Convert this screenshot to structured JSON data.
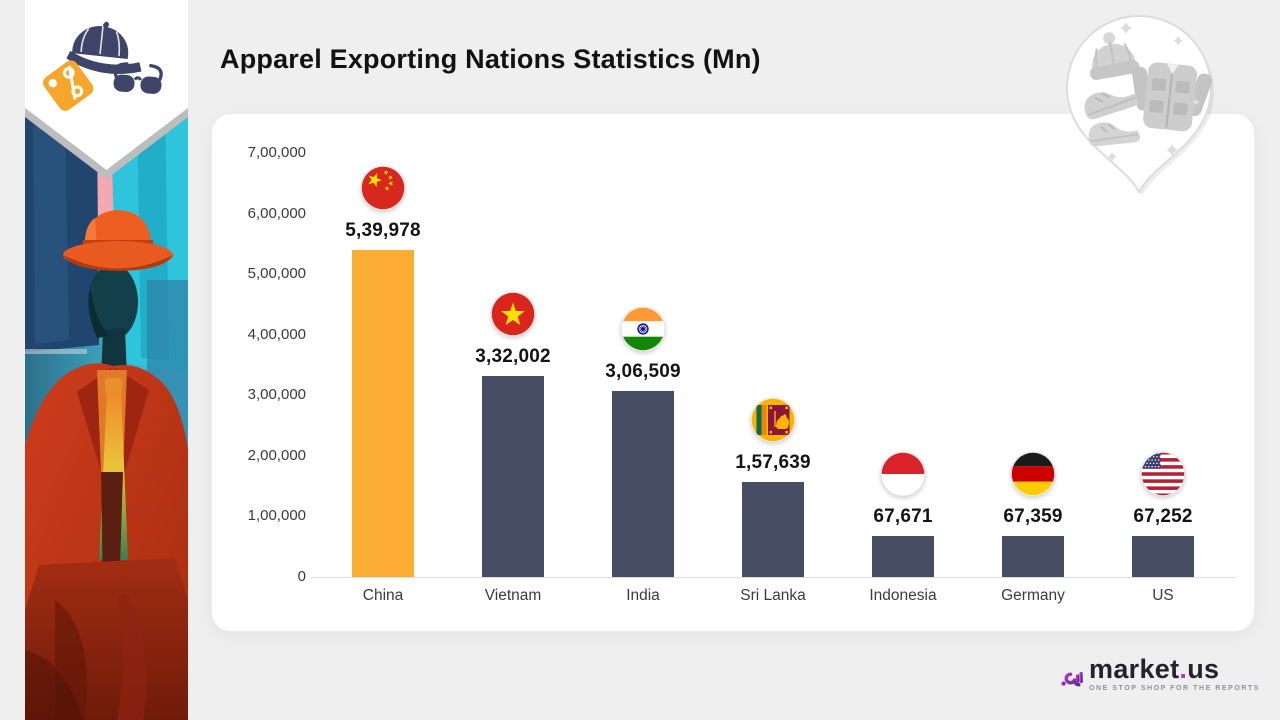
{
  "page": {
    "background": "#EFEFEF"
  },
  "header": {
    "title": "Apparel Exporting Nations Statistics (Mn)"
  },
  "chart_data": {
    "type": "bar",
    "title": "Apparel Exporting Nations Statistics (Mn)",
    "categories": [
      "China",
      "Vietnam",
      "India",
      "Sri Lanka",
      "Indonesia",
      "Germany",
      "US"
    ],
    "values": [
      539978,
      332002,
      306509,
      157639,
      67671,
      67359,
      67252
    ],
    "value_labels": [
      "5,39,978",
      "3,32,002",
      "3,06,509",
      "1,57,639",
      "67,671",
      "67,359",
      "67,252"
    ],
    "flags": [
      "china",
      "vietnam",
      "india",
      "sri-lanka",
      "indonesia",
      "germany",
      "us"
    ],
    "bar_colors": [
      "#FBAE33",
      "#474D63",
      "#474D63",
      "#474D63",
      "#474D63",
      "#474D63",
      "#474D63"
    ],
    "highlight_color": "#FBAE33",
    "default_bar_color": "#474D63",
    "xlabel": "",
    "ylabel": "",
    "ylim": [
      0,
      700000
    ],
    "yticks": [
      "7,00,000",
      "6,00,000",
      "5,00,000",
      "4,00,000",
      "3,00,000",
      "2,00,000",
      "1,00,000",
      "0"
    ],
    "grid": false,
    "legend": false
  },
  "branding": {
    "logo_market": "market",
    "logo_dot": ".",
    "logo_us": "us",
    "tagline": "ONE STOP SHOP FOR THE REPORTS",
    "accent_purple": "#8A35B5"
  },
  "decor_icons": {
    "left_badge": [
      "baseball-cap-icon",
      "discount-tag-icon",
      "sunglasses-icon"
    ],
    "right_badge": [
      "beanie-icon",
      "jacket-icon",
      "sneaker-icon",
      "sparkle-icon"
    ]
  }
}
